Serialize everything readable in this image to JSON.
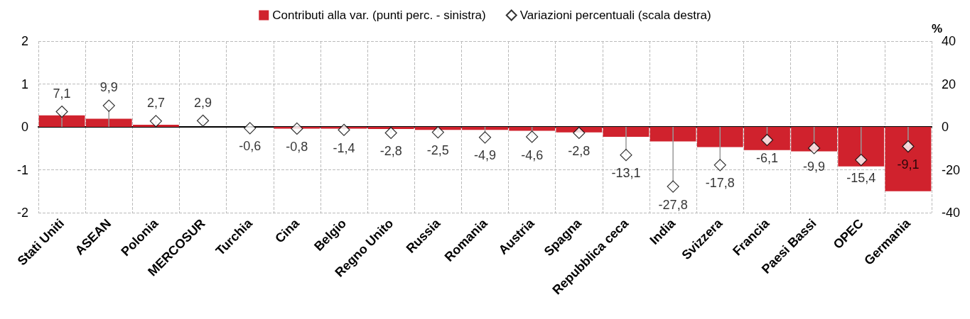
{
  "chart_data": {
    "type": "bar",
    "categories": [
      "Stati Uniti",
      "ASEAN",
      "Polonia",
      "MERCOSUR",
      "Turchia",
      "Cina",
      "Belgio",
      "Regno Unito",
      "Russia",
      "Romania",
      "Austria",
      "Spagna",
      "Repubblica ceca",
      "India",
      "Svizzera",
      "Francia",
      "Paesi Bassi",
      "OPEC",
      "Germania"
    ],
    "series": [
      {
        "name": "Contributi alla var. (punti perc. - sinistra)",
        "color": "#d0222d",
        "values": [
          0.27,
          0.19,
          0.05,
          0,
          0,
          -0.04,
          -0.04,
          -0.05,
          -0.07,
          -0.07,
          -0.09,
          -0.13,
          -0.23,
          -0.34,
          -0.47,
          -0.54,
          -0.57,
          -0.92,
          -1.5
        ]
      },
      {
        "name": "Variazioni percentuali (scala destra)",
        "type": "lollipop",
        "axis": "y2",
        "color": "#000000",
        "marker": "diamond",
        "values": [
          7.1,
          9.9,
          2.7,
          2.9,
          -0.6,
          -0.8,
          -1.4,
          -2.8,
          -2.5,
          -4.9,
          -4.6,
          -2.8,
          -13.1,
          -27.8,
          -17.8,
          -6.1,
          -9.9,
          -15.4,
          -9.1
        ],
        "value_labels": [
          "7,1",
          "9,9",
          "2,7",
          "2,9",
          "-0,6",
          "-0,8",
          "-1,4",
          "-2,8",
          "-2,5",
          "-4,9",
          "-4,6",
          "-2,8",
          "-13,1",
          "-27,8",
          "-17,8",
          "-6,1",
          "-9,9",
          "-15,4",
          "-9,1"
        ]
      }
    ],
    "ylim": [
      -2,
      2
    ],
    "yticks": [
      -2,
      -1,
      0,
      1,
      2
    ],
    "y2label": "%",
    "y2lim": [
      -40,
      40
    ],
    "y2ticks": [
      -40,
      -20,
      0,
      20,
      40
    ],
    "grid": true,
    "legend": "top"
  }
}
